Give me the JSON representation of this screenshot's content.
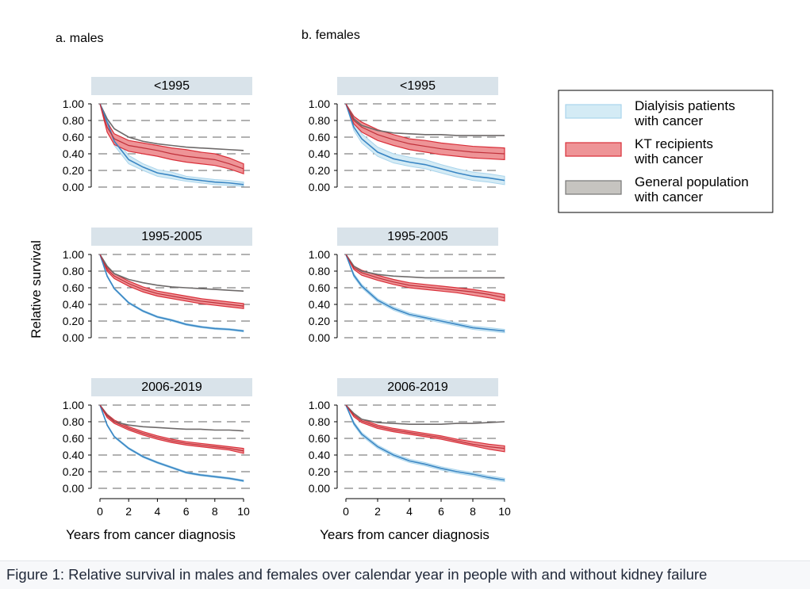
{
  "caption": "Figure 1: Relative survival in males and females over calendar year in people with and without kidney failure",
  "chart_data": {
    "type": "line",
    "ylabel": "Relative survival",
    "xlabel": "Years from cancer diagnosis",
    "xlim": [
      0,
      10
    ],
    "ylim": [
      0,
      1
    ],
    "x_ticks": [
      0,
      2,
      4,
      6,
      8,
      10
    ],
    "y_ticks": [
      0,
      0.2,
      0.4,
      0.6,
      0.8,
      1.0
    ],
    "y_tick_labels": [
      "0.00",
      "0.20",
      "0.40",
      "0.60",
      "0.80",
      "1.00"
    ],
    "grid": "horizontal dashed",
    "legend_position": "right",
    "series_styles": [
      {
        "name": "Dialyisis patients\nwith cancer",
        "line_color": "#3a86c4",
        "band_fill": "#d4ebf5",
        "band_stroke": "#a9d4ec"
      },
      {
        "name": "KT recipients\nwith cancer",
        "line_color": "#c0303a",
        "band_fill": "#ee9497",
        "band_stroke": "#d9303a"
      },
      {
        "name": "General population\nwith cancer",
        "line_color": "#6e6a6a",
        "band_fill": "#c6c4c0",
        "band_stroke": "#777777"
      }
    ],
    "columns": [
      "a. males",
      "b. females"
    ],
    "periods": [
      "<1995",
      "1995-2005",
      "2006-2019"
    ],
    "x": [
      0,
      0.5,
      1,
      2,
      3,
      4,
      5,
      6,
      7,
      8,
      9,
      10
    ],
    "panels": [
      {
        "column": "a. males",
        "period": "<1995",
        "dialysis": [
          1.0,
          0.78,
          0.55,
          0.33,
          0.24,
          0.17,
          0.14,
          0.1,
          0.08,
          0.06,
          0.05,
          0.03
        ],
        "dialysis_lower": [
          1.0,
          0.74,
          0.5,
          0.28,
          0.2,
          0.13,
          0.1,
          0.07,
          0.05,
          0.03,
          0.02,
          0.01
        ],
        "dialysis_upper": [
          1.0,
          0.82,
          0.6,
          0.38,
          0.28,
          0.21,
          0.18,
          0.13,
          0.11,
          0.09,
          0.08,
          0.06
        ],
        "kt": [
          1.0,
          0.72,
          0.58,
          0.5,
          0.47,
          0.44,
          0.4,
          0.37,
          0.35,
          0.33,
          0.28,
          0.22
        ],
        "kt_lower": [
          1.0,
          0.66,
          0.51,
          0.43,
          0.4,
          0.37,
          0.33,
          0.3,
          0.28,
          0.26,
          0.22,
          0.16
        ],
        "kt_upper": [
          1.0,
          0.78,
          0.64,
          0.56,
          0.53,
          0.5,
          0.47,
          0.45,
          0.42,
          0.4,
          0.35,
          0.28
        ],
        "gen": [
          1.0,
          0.82,
          0.7,
          0.6,
          0.55,
          0.52,
          0.5,
          0.48,
          0.47,
          0.46,
          0.45,
          0.44
        ]
      },
      {
        "column": "b. females",
        "period": "<1995",
        "dialysis": [
          1.0,
          0.72,
          0.58,
          0.42,
          0.34,
          0.3,
          0.27,
          0.22,
          0.17,
          0.13,
          0.11,
          0.08
        ],
        "dialysis_lower": [
          1.0,
          0.68,
          0.53,
          0.37,
          0.29,
          0.25,
          0.22,
          0.17,
          0.12,
          0.08,
          0.06,
          0.03
        ],
        "dialysis_upper": [
          1.0,
          0.77,
          0.64,
          0.48,
          0.4,
          0.36,
          0.33,
          0.27,
          0.22,
          0.18,
          0.16,
          0.13
        ],
        "kt": [
          1.0,
          0.8,
          0.72,
          0.63,
          0.57,
          0.52,
          0.49,
          0.46,
          0.44,
          0.42,
          0.41,
          0.4
        ],
        "kt_lower": [
          1.0,
          0.76,
          0.66,
          0.56,
          0.5,
          0.45,
          0.42,
          0.39,
          0.37,
          0.35,
          0.34,
          0.33
        ],
        "kt_upper": [
          1.0,
          0.85,
          0.78,
          0.69,
          0.63,
          0.58,
          0.56,
          0.53,
          0.51,
          0.49,
          0.48,
          0.47
        ],
        "gen": [
          1.0,
          0.82,
          0.74,
          0.68,
          0.65,
          0.64,
          0.63,
          0.63,
          0.62,
          0.62,
          0.62,
          0.62
        ]
      },
      {
        "column": "a. males",
        "period": "1995-2005",
        "dialysis": [
          1.0,
          0.74,
          0.59,
          0.42,
          0.32,
          0.25,
          0.21,
          0.16,
          0.13,
          0.11,
          0.1,
          0.08
        ],
        "dialysis_lower": [
          1.0,
          0.73,
          0.58,
          0.41,
          0.31,
          0.24,
          0.2,
          0.15,
          0.12,
          0.1,
          0.09,
          0.07
        ],
        "dialysis_upper": [
          1.0,
          0.75,
          0.6,
          0.43,
          0.33,
          0.26,
          0.22,
          0.17,
          0.14,
          0.12,
          0.11,
          0.09
        ],
        "kt": [
          1.0,
          0.82,
          0.74,
          0.65,
          0.58,
          0.53,
          0.5,
          0.47,
          0.44,
          0.42,
          0.4,
          0.38
        ],
        "kt_lower": [
          1.0,
          0.8,
          0.71,
          0.62,
          0.55,
          0.5,
          0.47,
          0.44,
          0.41,
          0.39,
          0.37,
          0.35
        ],
        "kt_upper": [
          1.0,
          0.84,
          0.77,
          0.68,
          0.61,
          0.56,
          0.53,
          0.5,
          0.47,
          0.45,
          0.43,
          0.41
        ],
        "gen": [
          1.0,
          0.86,
          0.77,
          0.7,
          0.66,
          0.63,
          0.61,
          0.6,
          0.59,
          0.58,
          0.57,
          0.56
        ]
      },
      {
        "column": "b. females",
        "period": "1995-2005",
        "dialysis": [
          1.0,
          0.75,
          0.62,
          0.45,
          0.35,
          0.28,
          0.24,
          0.2,
          0.16,
          0.12,
          0.1,
          0.08
        ],
        "dialysis_lower": [
          1.0,
          0.73,
          0.6,
          0.43,
          0.33,
          0.26,
          0.22,
          0.18,
          0.14,
          0.1,
          0.08,
          0.06
        ],
        "dialysis_upper": [
          1.0,
          0.77,
          0.64,
          0.47,
          0.37,
          0.3,
          0.26,
          0.22,
          0.18,
          0.14,
          0.12,
          0.1
        ],
        "kt": [
          1.0,
          0.84,
          0.78,
          0.72,
          0.67,
          0.63,
          0.61,
          0.59,
          0.57,
          0.55,
          0.52,
          0.48
        ],
        "kt_lower": [
          1.0,
          0.82,
          0.75,
          0.69,
          0.64,
          0.6,
          0.58,
          0.56,
          0.54,
          0.51,
          0.48,
          0.44
        ],
        "kt_upper": [
          1.0,
          0.86,
          0.81,
          0.75,
          0.7,
          0.66,
          0.64,
          0.62,
          0.6,
          0.58,
          0.55,
          0.52
        ],
        "gen": [
          1.0,
          0.86,
          0.8,
          0.76,
          0.74,
          0.73,
          0.72,
          0.72,
          0.72,
          0.72,
          0.72,
          0.72
        ]
      },
      {
        "column": "a. males",
        "period": "2006-2019",
        "dialysis": [
          1.0,
          0.76,
          0.62,
          0.48,
          0.38,
          0.31,
          0.25,
          0.19,
          0.16,
          0.14,
          0.12,
          0.09
        ],
        "dialysis_lower": [
          1.0,
          0.75,
          0.61,
          0.47,
          0.37,
          0.3,
          0.24,
          0.18,
          0.15,
          0.13,
          0.11,
          0.08
        ],
        "dialysis_upper": [
          1.0,
          0.77,
          0.63,
          0.49,
          0.39,
          0.32,
          0.26,
          0.2,
          0.17,
          0.15,
          0.13,
          0.1
        ],
        "kt": [
          1.0,
          0.87,
          0.8,
          0.72,
          0.66,
          0.61,
          0.57,
          0.54,
          0.52,
          0.5,
          0.48,
          0.45
        ],
        "kt_lower": [
          1.0,
          0.85,
          0.78,
          0.7,
          0.64,
          0.59,
          0.55,
          0.52,
          0.5,
          0.48,
          0.46,
          0.42
        ],
        "kt_upper": [
          1.0,
          0.89,
          0.82,
          0.74,
          0.68,
          0.63,
          0.59,
          0.56,
          0.54,
          0.52,
          0.5,
          0.48
        ],
        "gen": [
          1.0,
          0.88,
          0.8,
          0.76,
          0.74,
          0.73,
          0.72,
          0.71,
          0.71,
          0.7,
          0.7,
          0.69
        ]
      },
      {
        "column": "b. females",
        "period": "2006-2019",
        "dialysis": [
          1.0,
          0.78,
          0.65,
          0.5,
          0.4,
          0.33,
          0.29,
          0.24,
          0.2,
          0.17,
          0.13,
          0.1
        ],
        "dialysis_lower": [
          1.0,
          0.76,
          0.63,
          0.48,
          0.38,
          0.31,
          0.27,
          0.22,
          0.18,
          0.15,
          0.11,
          0.08
        ],
        "dialysis_upper": [
          1.0,
          0.8,
          0.67,
          0.52,
          0.42,
          0.35,
          0.31,
          0.26,
          0.22,
          0.19,
          0.15,
          0.12
        ],
        "kt": [
          1.0,
          0.88,
          0.81,
          0.74,
          0.7,
          0.67,
          0.64,
          0.61,
          0.57,
          0.53,
          0.5,
          0.48
        ],
        "kt_lower": [
          1.0,
          0.86,
          0.79,
          0.72,
          0.68,
          0.65,
          0.62,
          0.59,
          0.55,
          0.51,
          0.47,
          0.44
        ],
        "kt_upper": [
          1.0,
          0.9,
          0.83,
          0.76,
          0.72,
          0.69,
          0.66,
          0.63,
          0.59,
          0.56,
          0.53,
          0.51
        ],
        "gen": [
          1.0,
          0.9,
          0.83,
          0.79,
          0.78,
          0.77,
          0.77,
          0.77,
          0.78,
          0.78,
          0.79,
          0.8
        ]
      }
    ]
  }
}
